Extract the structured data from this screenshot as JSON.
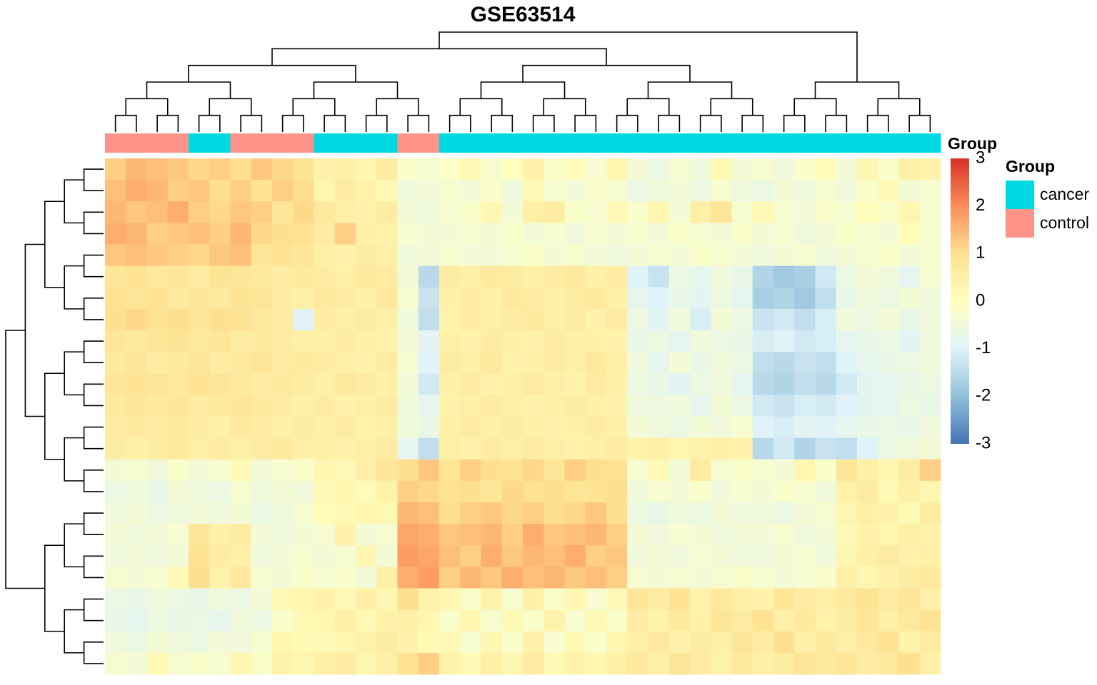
{
  "chart_data": {
    "type": "heatmap",
    "title": "GSE63514",
    "annotation_label": "Group",
    "column_groups": [
      "control",
      "control",
      "control",
      "control",
      "cancer",
      "cancer",
      "control",
      "control",
      "control",
      "control",
      "cancer",
      "cancer",
      "cancer",
      "cancer",
      "control",
      "control",
      "cancer",
      "cancer",
      "cancer",
      "cancer",
      "cancer",
      "cancer",
      "cancer",
      "cancer",
      "cancer",
      "cancer",
      "cancer",
      "cancer",
      "cancer",
      "cancer",
      "cancer",
      "cancer",
      "cancer",
      "cancer",
      "cancer",
      "cancer",
      "cancer",
      "cancer",
      "cancer",
      "cancer"
    ],
    "matrix": [
      [
        1.2,
        1.5,
        1.4,
        1.3,
        1.1,
        1.2,
        1.0,
        1.3,
        1.1,
        0.9,
        0.4,
        0.5,
        0.3,
        0.6,
        -0.2,
        -0.3,
        -0.1,
        0.2,
        -0.3,
        0.0,
        0.4,
        -0.2,
        0.1,
        -0.3,
        0.3,
        -0.4,
        -0.6,
        -0.3,
        -0.5,
        0.2,
        -0.4,
        -0.3,
        -0.5,
        -0.2,
        0.1,
        -0.4,
        0.3,
        -0.2,
        0.5,
        0.4
      ],
      [
        1.4,
        1.6,
        1.5,
        1.2,
        1.3,
        1.0,
        1.2,
        0.9,
        1.2,
        1.0,
        0.3,
        0.6,
        0.4,
        0.2,
        -0.5,
        -0.4,
        -0.3,
        -0.4,
        -0.2,
        -0.5,
        0.2,
        -0.3,
        -0.4,
        -0.2,
        -0.3,
        -0.6,
        -0.5,
        -0.4,
        -0.6,
        -0.3,
        -0.5,
        -0.6,
        -0.4,
        -0.5,
        -0.3,
        -0.5,
        -0.2,
        0.2,
        -0.4,
        -0.3
      ],
      [
        1.5,
        1.3,
        1.4,
        1.6,
        1.2,
        1.1,
        1.3,
        1.2,
        0.8,
        1.1,
        0.7,
        0.5,
        0.4,
        0.6,
        -0.4,
        -0.5,
        -0.3,
        -0.2,
        0.3,
        -0.4,
        0.5,
        0.6,
        -0.2,
        -0.3,
        0.2,
        -0.2,
        0.3,
        -0.4,
        0.5,
        0.8,
        -0.3,
        0.2,
        -0.3,
        -0.4,
        -0.2,
        -0.3,
        0.1,
        -0.2,
        0.3,
        -0.3
      ],
      [
        1.6,
        1.5,
        1.2,
        1.3,
        1.4,
        1.2,
        1.5,
        1.1,
        1.0,
        0.9,
        0.6,
        1.2,
        0.5,
        0.4,
        -0.3,
        -0.4,
        -0.4,
        -0.3,
        -0.4,
        -0.2,
        -0.4,
        -0.3,
        -0.5,
        -0.3,
        -0.4,
        -0.3,
        -0.4,
        -0.2,
        -0.3,
        -0.4,
        -0.2,
        -0.4,
        -0.3,
        -0.5,
        -0.4,
        -0.2,
        -0.3,
        -0.4,
        0.1,
        -0.3
      ],
      [
        1.3,
        1.4,
        1.3,
        1.2,
        1.1,
        1.3,
        1.4,
        0.8,
        0.9,
        0.8,
        0.5,
        0.4,
        0.6,
        0.5,
        -0.5,
        -0.4,
        -0.3,
        -0.4,
        -0.4,
        -0.3,
        -0.2,
        -0.4,
        -0.3,
        -0.4,
        -0.5,
        -0.4,
        -0.3,
        -0.4,
        -0.2,
        -0.3,
        -0.4,
        -0.5,
        -0.4,
        -0.3,
        -0.5,
        -0.4,
        -0.3,
        -0.2,
        -0.4,
        -0.3
      ],
      [
        0.8,
        0.9,
        0.7,
        0.8,
        0.6,
        0.9,
        0.8,
        0.7,
        0.6,
        0.7,
        0.6,
        0.5,
        0.7,
        0.6,
        -0.4,
        -1.5,
        0.6,
        0.5,
        0.7,
        0.6,
        0.5,
        0.6,
        0.7,
        0.5,
        0.6,
        -1.0,
        -1.3,
        -0.6,
        -0.8,
        -0.5,
        -0.7,
        -1.6,
        -1.8,
        -1.7,
        -1.2,
        -0.6,
        -0.4,
        -0.5,
        -0.8,
        -0.3
      ],
      [
        0.9,
        0.8,
        0.9,
        0.7,
        0.8,
        0.7,
        0.9,
        0.8,
        0.6,
        0.5,
        0.7,
        0.6,
        0.5,
        0.7,
        -0.3,
        -1.3,
        0.5,
        0.6,
        0.5,
        0.7,
        0.6,
        0.5,
        0.6,
        0.7,
        0.5,
        -0.8,
        -1.0,
        -0.7,
        -0.9,
        -0.6,
        -0.8,
        -1.7,
        -1.6,
        -1.8,
        -1.4,
        -0.7,
        -0.5,
        -0.6,
        -0.4,
        -0.5
      ],
      [
        1.0,
        1.1,
        0.9,
        1.0,
        0.8,
        1.0,
        0.9,
        0.7,
        0.6,
        -1.0,
        0.6,
        0.5,
        0.6,
        0.5,
        -0.5,
        -1.4,
        0.4,
        0.6,
        0.5,
        0.6,
        0.7,
        0.5,
        0.6,
        0.4,
        0.6,
        -0.6,
        -0.9,
        -0.5,
        -1.1,
        -0.4,
        -0.6,
        -1.3,
        -1.2,
        -1.4,
        -1.1,
        -0.5,
        -0.6,
        -0.4,
        -0.7,
        -0.5
      ],
      [
        0.8,
        0.7,
        0.8,
        0.9,
        0.7,
        0.8,
        0.6,
        0.7,
        0.6,
        0.5,
        0.5,
        0.6,
        0.5,
        0.4,
        -0.4,
        -0.9,
        0.5,
        0.4,
        0.6,
        0.5,
        0.4,
        0.6,
        0.5,
        0.5,
        0.4,
        -0.7,
        -0.6,
        -0.8,
        -0.5,
        -0.6,
        -0.7,
        -1.1,
        -1.0,
        -1.2,
        -1.1,
        -0.8,
        -0.7,
        -0.6,
        -0.9,
        -0.5
      ],
      [
        0.7,
        0.8,
        0.6,
        0.7,
        0.8,
        0.6,
        0.7,
        0.8,
        0.6,
        0.7,
        0.6,
        0.5,
        0.4,
        0.6,
        -0.3,
        -1.0,
        0.6,
        0.5,
        0.7,
        0.4,
        0.5,
        0.6,
        0.5,
        0.7,
        0.5,
        -0.5,
        -0.8,
        -0.4,
        -0.7,
        -0.5,
        -0.6,
        -1.4,
        -1.5,
        -1.3,
        -1.4,
        -1.0,
        -0.8,
        -0.7,
        -0.6,
        -0.5
      ],
      [
        0.8,
        0.9,
        0.8,
        0.7,
        0.9,
        0.8,
        0.7,
        0.6,
        0.7,
        0.6,
        0.5,
        0.7,
        0.6,
        0.5,
        -0.4,
        -1.2,
        0.5,
        0.6,
        0.4,
        0.5,
        0.6,
        0.5,
        0.4,
        0.6,
        0.5,
        -0.6,
        -0.7,
        -0.9,
        -0.6,
        -0.5,
        -0.8,
        -1.5,
        -1.6,
        -1.4,
        -1.5,
        -1.2,
        -0.9,
        -0.8,
        -0.7,
        -0.6
      ],
      [
        0.7,
        0.8,
        0.7,
        0.8,
        0.6,
        0.7,
        0.8,
        0.7,
        0.6,
        0.5,
        0.6,
        0.4,
        0.5,
        0.6,
        -0.5,
        -0.8,
        0.4,
        0.5,
        0.6,
        0.5,
        0.4,
        0.5,
        0.6,
        0.5,
        0.4,
        -0.5,
        -0.6,
        -0.5,
        -0.8,
        -0.4,
        -0.6,
        -1.2,
        -1.3,
        -1.1,
        -1.2,
        -1.0,
        -0.9,
        -0.8,
        -0.6,
        -0.7
      ],
      [
        0.6,
        0.7,
        0.6,
        0.7,
        0.6,
        0.5,
        0.7,
        0.6,
        0.5,
        0.6,
        0.5,
        0.6,
        0.4,
        0.5,
        -0.5,
        -0.7,
        0.5,
        0.6,
        0.5,
        0.6,
        0.5,
        0.4,
        0.5,
        0.6,
        0.5,
        -0.4,
        -0.5,
        -0.6,
        -0.4,
        -0.5,
        -0.3,
        -1.0,
        -1.1,
        -0.9,
        -1.0,
        -0.8,
        -0.7,
        -0.6,
        -0.7,
        -0.5
      ],
      [
        0.6,
        0.5,
        0.6,
        0.7,
        0.5,
        0.6,
        0.5,
        0.6,
        0.7,
        0.5,
        0.5,
        0.4,
        0.5,
        0.6,
        -0.8,
        -1.4,
        0.5,
        0.4,
        0.6,
        0.5,
        0.6,
        0.5,
        0.4,
        0.5,
        0.6,
        0.4,
        0.5,
        0.3,
        0.4,
        0.5,
        0.4,
        -1.5,
        -1.2,
        -1.6,
        -1.3,
        -1.4,
        -1.0,
        -0.6,
        -0.5,
        -0.4
      ],
      [
        -0.4,
        -0.3,
        -0.5,
        -0.2,
        -0.4,
        -0.3,
        0.2,
        -0.4,
        -0.3,
        -0.2,
        0.3,
        0.2,
        0.5,
        0.8,
        1.0,
        1.3,
        0.8,
        1.2,
        1.0,
        0.9,
        1.1,
        0.8,
        1.2,
        1.0,
        0.9,
        -0.3,
        0.2,
        -0.4,
        0.6,
        -0.3,
        -0.2,
        -0.3,
        -0.4,
        0.3,
        -0.2,
        0.8,
        0.5,
        0.3,
        0.6,
        1.2
      ],
      [
        -0.6,
        -0.5,
        -0.7,
        -0.4,
        -0.5,
        -0.6,
        -0.3,
        -0.5,
        -0.4,
        -0.5,
        0.2,
        0.3,
        0.1,
        0.4,
        1.2,
        1.1,
        0.9,
        1.0,
        0.8,
        1.1,
        0.9,
        1.0,
        0.8,
        0.9,
        1.0,
        -0.5,
        -0.3,
        -0.4,
        -0.2,
        -0.5,
        -0.3,
        -0.4,
        -0.2,
        -0.3,
        -0.5,
        0.4,
        0.6,
        0.2,
        0.5,
        0.3
      ],
      [
        -0.5,
        -0.4,
        -0.6,
        -0.5,
        -0.4,
        -0.5,
        -0.4,
        -0.6,
        -0.5,
        -0.3,
        0.1,
        0.2,
        0.3,
        0.2,
        1.5,
        1.4,
        1.0,
        1.2,
        1.3,
        1.1,
        1.2,
        1.0,
        1.1,
        1.3,
        1.0,
        -0.6,
        -0.7,
        -0.5,
        -0.6,
        -0.4,
        -0.5,
        -0.5,
        -0.6,
        -0.4,
        -0.3,
        0.3,
        0.5,
        0.4,
        0.2,
        0.6
      ],
      [
        -0.4,
        -0.5,
        -0.4,
        -0.3,
        0.8,
        0.5,
        0.6,
        -0.4,
        -0.5,
        -0.4,
        -0.3,
        0.4,
        -0.4,
        -0.3,
        1.7,
        1.6,
        1.3,
        1.4,
        1.5,
        1.2,
        1.6,
        1.3,
        1.4,
        1.5,
        1.2,
        -0.4,
        -0.5,
        -0.3,
        -0.4,
        -0.5,
        -0.4,
        -0.4,
        -0.3,
        -0.5,
        -0.4,
        0.2,
        0.4,
        0.3,
        0.5,
        0.4
      ],
      [
        -0.5,
        -0.4,
        -0.5,
        -0.4,
        0.9,
        0.6,
        0.5,
        -0.5,
        -0.4,
        -0.3,
        -0.4,
        -0.3,
        0.3,
        -0.4,
        1.8,
        1.7,
        1.4,
        1.2,
        1.6,
        1.3,
        1.5,
        1.4,
        1.6,
        1.2,
        1.3,
        -0.5,
        -0.4,
        -0.5,
        -0.3,
        -0.4,
        -0.5,
        -0.5,
        -0.4,
        -0.3,
        -0.5,
        0.3,
        0.5,
        0.6,
        0.4,
        0.5
      ],
      [
        -0.3,
        -0.4,
        -0.3,
        0.2,
        1.0,
        0.4,
        0.7,
        -0.3,
        -0.4,
        -0.2,
        -0.3,
        -0.2,
        -0.4,
        0.5,
        1.6,
        1.8,
        1.2,
        1.5,
        1.3,
        1.6,
        1.4,
        1.5,
        1.3,
        1.4,
        1.2,
        -0.3,
        -0.4,
        -0.3,
        -0.4,
        -0.3,
        -0.2,
        -0.3,
        -0.4,
        -0.3,
        -0.2,
        0.5,
        0.3,
        0.4,
        0.6,
        0.7
      ],
      [
        -0.6,
        -0.7,
        -0.5,
        -0.6,
        -0.7,
        -0.5,
        -0.6,
        -0.4,
        0.2,
        0.3,
        0.4,
        0.2,
        0.5,
        0.3,
        1.0,
        0.4,
        0.3,
        -0.2,
        0.4,
        -0.3,
        0.5,
        -0.2,
        0.3,
        -0.3,
        0.2,
        0.8,
        0.6,
        0.9,
        0.4,
        0.7,
        0.5,
        0.4,
        0.8,
        0.6,
        0.5,
        0.7,
        0.9,
        0.6,
        0.8,
        0.5
      ],
      [
        -0.7,
        -0.8,
        -0.6,
        -0.7,
        -0.6,
        -0.8,
        -0.5,
        -0.6,
        -0.2,
        0.2,
        0.3,
        0.5,
        0.2,
        0.4,
        0.5,
        0.3,
        -0.2,
        0.3,
        -0.3,
        0.2,
        -0.2,
        0.4,
        -0.3,
        0.2,
        -0.2,
        0.6,
        0.4,
        0.7,
        0.5,
        0.8,
        0.6,
        0.9,
        0.5,
        0.7,
        0.4,
        0.6,
        0.8,
        0.5,
        0.7,
        0.9
      ],
      [
        -0.5,
        -0.6,
        -0.4,
        -0.5,
        -0.6,
        -0.4,
        -0.5,
        -0.3,
        0.3,
        0.2,
        0.2,
        0.3,
        0.4,
        0.6,
        0.4,
        0.2,
        0.2,
        -0.3,
        0.3,
        -0.2,
        0.4,
        -0.3,
        0.2,
        -0.2,
        0.3,
        0.5,
        0.7,
        0.4,
        0.6,
        0.5,
        0.8,
        0.6,
        1.0,
        0.5,
        0.7,
        0.5,
        0.7,
        0.9,
        0.4,
        0.6
      ],
      [
        -0.3,
        -0.4,
        0.2,
        -0.3,
        -0.2,
        -0.3,
        0.3,
        -0.2,
        0.4,
        0.3,
        0.5,
        0.6,
        0.3,
        0.5,
        0.9,
        1.2,
        0.4,
        0.2,
        0.5,
        0.3,
        0.6,
        0.2,
        0.4,
        0.3,
        0.5,
        0.7,
        0.5,
        0.8,
        0.6,
        0.4,
        0.7,
        0.5,
        0.6,
        0.8,
        0.7,
        0.8,
        0.6,
        0.7,
        1.0,
        0.5
      ]
    ],
    "zlim": [
      -3,
      3
    ],
    "zticks": [
      3,
      2,
      1,
      0,
      -1,
      -2,
      -3
    ],
    "colors": [
      "#4575B4",
      "#91BFDB",
      "#E0F3F8",
      "#FFFFBF",
      "#FEE090",
      "#FC8D59",
      "#D73027"
    ],
    "legend_title": "Group",
    "groups": [
      {
        "name": "cancer",
        "color": "#00D9E1"
      },
      {
        "name": "control",
        "color": "#FF938A"
      }
    ]
  }
}
